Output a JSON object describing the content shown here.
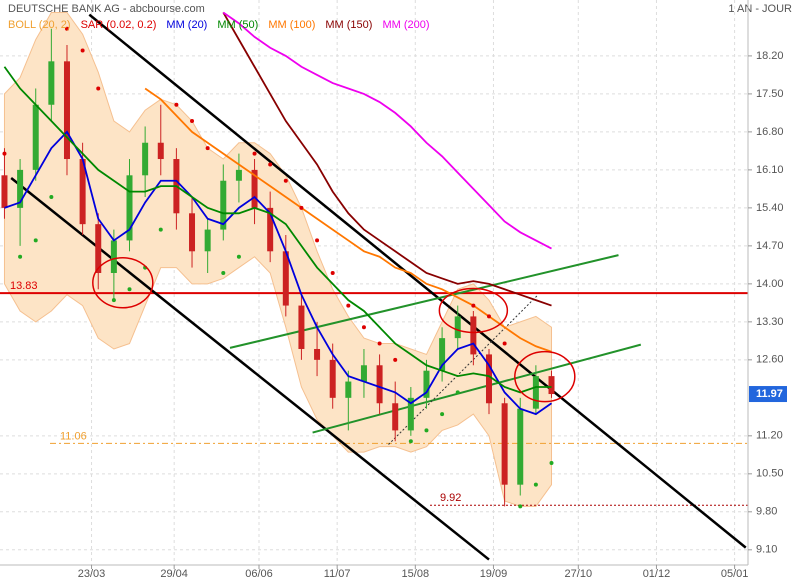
{
  "chart_data": {
    "type": "candlestick",
    "title": "DEUTSCHE BANK AG - abcbourse.com",
    "period": "1 AN - JOUR",
    "xlim": [
      "10/02",
      "11/01"
    ],
    "xticks": [
      "23/03",
      "29/04",
      "06/06",
      "11/07",
      "15/08",
      "19/09",
      "27/10",
      "01/12",
      "05/01"
    ],
    "ylim": [
      8.82,
      19.23
    ],
    "yticks": [
      {
        "value": 18.2,
        "label": "18.20"
      },
      {
        "value": 17.5,
        "label": "17.50"
      },
      {
        "value": 16.8,
        "label": "16.80"
      },
      {
        "value": 16.1,
        "label": "16.10"
      },
      {
        "value": 15.4,
        "label": "15.40"
      },
      {
        "value": 14.7,
        "label": "14.70"
      },
      {
        "value": 14,
        "label": "14.00"
      },
      {
        "value": 13.3,
        "label": "13.30"
      },
      {
        "value": 12.6,
        "label": "12.60"
      },
      {
        "value": 11.2,
        "label": "11.20"
      },
      {
        "value": 10.5,
        "label": "10.50"
      },
      {
        "value": 9.8,
        "label": "9.80"
      },
      {
        "value": 9.1,
        "label": "9.10"
      }
    ],
    "grid": true,
    "up_color": "#33aa33",
    "down_color": "#cc2222",
    "x": [
      "12/02",
      "19/02",
      "26/02",
      "05/03",
      "12/03",
      "19/03",
      "26/03",
      "02/04",
      "09/04",
      "16/04",
      "23/04",
      "30/04",
      "07/05",
      "14/05",
      "21/05",
      "28/05",
      "04/06",
      "11/06",
      "18/06",
      "25/06",
      "02/07",
      "09/07",
      "16/07",
      "23/07",
      "30/07",
      "06/08",
      "13/08",
      "20/08",
      "27/08",
      "03/09",
      "10/09",
      "17/09",
      "24/09",
      "01/10",
      "08/10",
      "15/10"
    ],
    "open": [
      16.0,
      15.4,
      16.1,
      17.3,
      18.1,
      16.3,
      15.1,
      14.2,
      14.8,
      16.0,
      16.6,
      16.3,
      15.3,
      14.6,
      15.0,
      15.9,
      16.1,
      15.4,
      14.6,
      13.6,
      12.8,
      12.6,
      11.9,
      12.2,
      12.5,
      11.8,
      11.3,
      11.9,
      12.4,
      13.0,
      13.4,
      12.7,
      11.8,
      10.3,
      11.7,
      12.3
    ],
    "high": [
      16.5,
      16.3,
      17.6,
      18.7,
      18.4,
      16.6,
      15.3,
      15.0,
      16.3,
      16.9,
      17.3,
      16.5,
      15.6,
      15.2,
      16.2,
      16.4,
      16.3,
      15.7,
      14.9,
      13.8,
      13.3,
      12.9,
      12.4,
      12.8,
      12.7,
      12.2,
      12.1,
      12.6,
      13.2,
      13.6,
      13.5,
      12.8,
      11.9,
      11.9,
      12.5,
      12.4
    ],
    "low": [
      15.2,
      14.7,
      15.9,
      17.0,
      16.0,
      14.9,
      13.9,
      13.7,
      14.6,
      15.6,
      16.0,
      15.0,
      14.3,
      14.2,
      14.8,
      15.5,
      15.1,
      14.4,
      13.4,
      12.6,
      12.3,
      11.7,
      11.3,
      11.9,
      11.6,
      11.1,
      11.2,
      11.7,
      12.2,
      12.8,
      12.5,
      11.6,
      9.9,
      10.1,
      11.6,
      11.9
    ],
    "close": [
      15.4,
      16.1,
      17.3,
      18.1,
      16.3,
      15.1,
      14.2,
      14.8,
      16.0,
      16.6,
      16.3,
      15.3,
      14.6,
      15.0,
      15.9,
      16.1,
      15.4,
      14.6,
      13.6,
      12.8,
      12.6,
      11.9,
      12.2,
      12.5,
      11.8,
      11.3,
      11.9,
      12.4,
      13.0,
      13.4,
      12.7,
      11.8,
      10.3,
      11.7,
      12.3,
      11.97
    ],
    "bollinger": {
      "name": "BOLL (20, 2)",
      "color": "#f0a030",
      "fill": "#fde4c6",
      "upper": [
        17.5,
        17.8,
        18.5,
        19.0,
        19.0,
        18.6,
        17.9,
        17.0,
        16.8,
        17.2,
        17.4,
        17.3,
        17.0,
        16.5,
        16.3,
        16.6,
        16.6,
        16.4,
        16.0,
        15.4,
        14.6,
        13.9,
        13.4,
        13.0,
        12.9,
        12.9,
        12.8,
        12.7,
        13.3,
        13.9,
        14.0,
        13.7,
        13.2,
        13.3,
        13.4,
        13.2
      ],
      "lower": [
        14.0,
        13.5,
        13.3,
        13.5,
        13.8,
        13.6,
        13.0,
        12.8,
        12.9,
        13.6,
        14.3,
        14.3,
        14.0,
        14.0,
        14.1,
        14.3,
        14.5,
        14.2,
        13.2,
        12.1,
        11.5,
        11.2,
        10.9,
        10.9,
        11.0,
        11.0,
        10.9,
        11.0,
        11.3,
        11.4,
        11.6,
        11.2,
        10.0,
        9.9,
        9.9,
        10.3
      ]
    },
    "sar": {
      "name": "SAR (0.02, 0.2)",
      "color": "#dd0000",
      "below_color": "#22aa22",
      "values": [
        16.4,
        14.5,
        14.8,
        15.6,
        18.7,
        18.3,
        17.6,
        13.7,
        13.9,
        14.3,
        15.0,
        17.3,
        17.0,
        16.5,
        14.2,
        14.5,
        16.4,
        16.2,
        15.9,
        15.4,
        14.8,
        14.2,
        13.6,
        13.2,
        12.9,
        12.6,
        11.1,
        11.3,
        11.6,
        12.0,
        13.6,
        13.4,
        12.9,
        9.9,
        10.3,
        10.7
      ]
    },
    "series": [
      {
        "name": "MM (20)",
        "color": "#0000dd",
        "values": [
          15.4,
          15.5,
          16.0,
          16.5,
          16.8,
          16.3,
          15.2,
          14.8,
          15.0,
          15.5,
          15.9,
          15.9,
          15.6,
          15.2,
          15.1,
          15.4,
          15.6,
          15.3,
          14.6,
          13.8,
          13.2,
          12.7,
          12.3,
          12.2,
          12.1,
          12.0,
          11.8,
          12.0,
          12.5,
          12.8,
          12.9,
          12.5,
          12.0,
          11.7,
          11.6,
          11.8
        ]
      },
      {
        "name": "MM (50)",
        "color": "#008800",
        "values": [
          18.0,
          17.6,
          17.3,
          17.0,
          16.7,
          16.4,
          16.1,
          15.9,
          15.7,
          15.7,
          15.8,
          15.8,
          15.6,
          15.4,
          15.3,
          15.3,
          15.4,
          15.3,
          15.1,
          14.7,
          14.3,
          14.0,
          13.7,
          13.5,
          13.2,
          12.9,
          12.7,
          12.5,
          12.4,
          12.3,
          12.35,
          12.3,
          12.1,
          12.0,
          12.1,
          12.1
        ]
      },
      {
        "name": "MM (100)",
        "color": "#ff7700",
        "values": [
          null,
          null,
          null,
          null,
          null,
          null,
          null,
          null,
          null,
          17.6,
          17.4,
          17.1,
          16.8,
          16.6,
          16.4,
          16.2,
          16.0,
          15.8,
          15.6,
          15.4,
          15.2,
          15.0,
          14.8,
          14.6,
          14.5,
          14.3,
          14.2,
          14.0,
          13.9,
          13.75,
          13.6,
          13.4,
          13.2,
          13.0,
          12.85,
          12.75
        ]
      },
      {
        "name": "MM (150)",
        "color": "#880000",
        "values": [
          null,
          null,
          null,
          null,
          null,
          null,
          null,
          null,
          null,
          null,
          null,
          null,
          null,
          null,
          19.0,
          18.5,
          18.0,
          17.5,
          17.0,
          16.6,
          16.2,
          15.7,
          15.3,
          15.0,
          14.8,
          14.6,
          14.4,
          14.2,
          14.1,
          14.0,
          14.05,
          14.0,
          13.9,
          13.8,
          13.7,
          13.6
        ]
      },
      {
        "name": "MM (200)",
        "color": "#ee00ee",
        "values": [
          null,
          null,
          null,
          null,
          null,
          null,
          null,
          null,
          null,
          null,
          null,
          null,
          null,
          null,
          19.0,
          18.8,
          18.55,
          18.35,
          18.2,
          18.0,
          17.85,
          17.7,
          17.6,
          17.5,
          17.35,
          17.15,
          16.9,
          16.6,
          16.35,
          16.05,
          15.75,
          15.45,
          15.15,
          14.95,
          14.8,
          14.65
        ]
      }
    ],
    "trendlines": [
      {
        "x": [
          "22/03",
          "10/01"
        ],
        "y": [
          18.96,
          9.14
        ],
        "color": "#000000"
      },
      {
        "x": [
          "15/02",
          "17/09"
        ],
        "y": [
          15.95,
          8.92
        ],
        "color": "#000000"
      },
      {
        "x": [
          "24/05",
          "14/11"
        ],
        "y": [
          12.82,
          14.53
        ],
        "color": "#22922a"
      },
      {
        "x": [
          "30/06",
          "24/11"
        ],
        "y": [
          11.26,
          12.88
        ],
        "color": "#22922a"
      },
      {
        "x": [
          "03/08",
          "09/10"
        ],
        "y": [
          11.04,
          13.8
        ],
        "color": "#333333",
        "dash": true
      }
    ],
    "levels": [
      {
        "value": 13.83,
        "color": "#dd0000",
        "style": "solid"
      },
      {
        "value": 11.06,
        "color": "#f0a030",
        "style": "dashdot"
      },
      {
        "value": 9.92,
        "color": "#aa0000",
        "style": "dotted"
      }
    ],
    "circles": [
      {
        "x": "06/04",
        "y": 14.02,
        "color": "#dd0000"
      },
      {
        "x": "10/09",
        "y": 13.51,
        "color": "#dd0000"
      },
      {
        "x": "12/10",
        "y": 12.29,
        "color": "#dd0000"
      }
    ],
    "last_price": 11.97,
    "last_price_color": "#2266dd"
  }
}
